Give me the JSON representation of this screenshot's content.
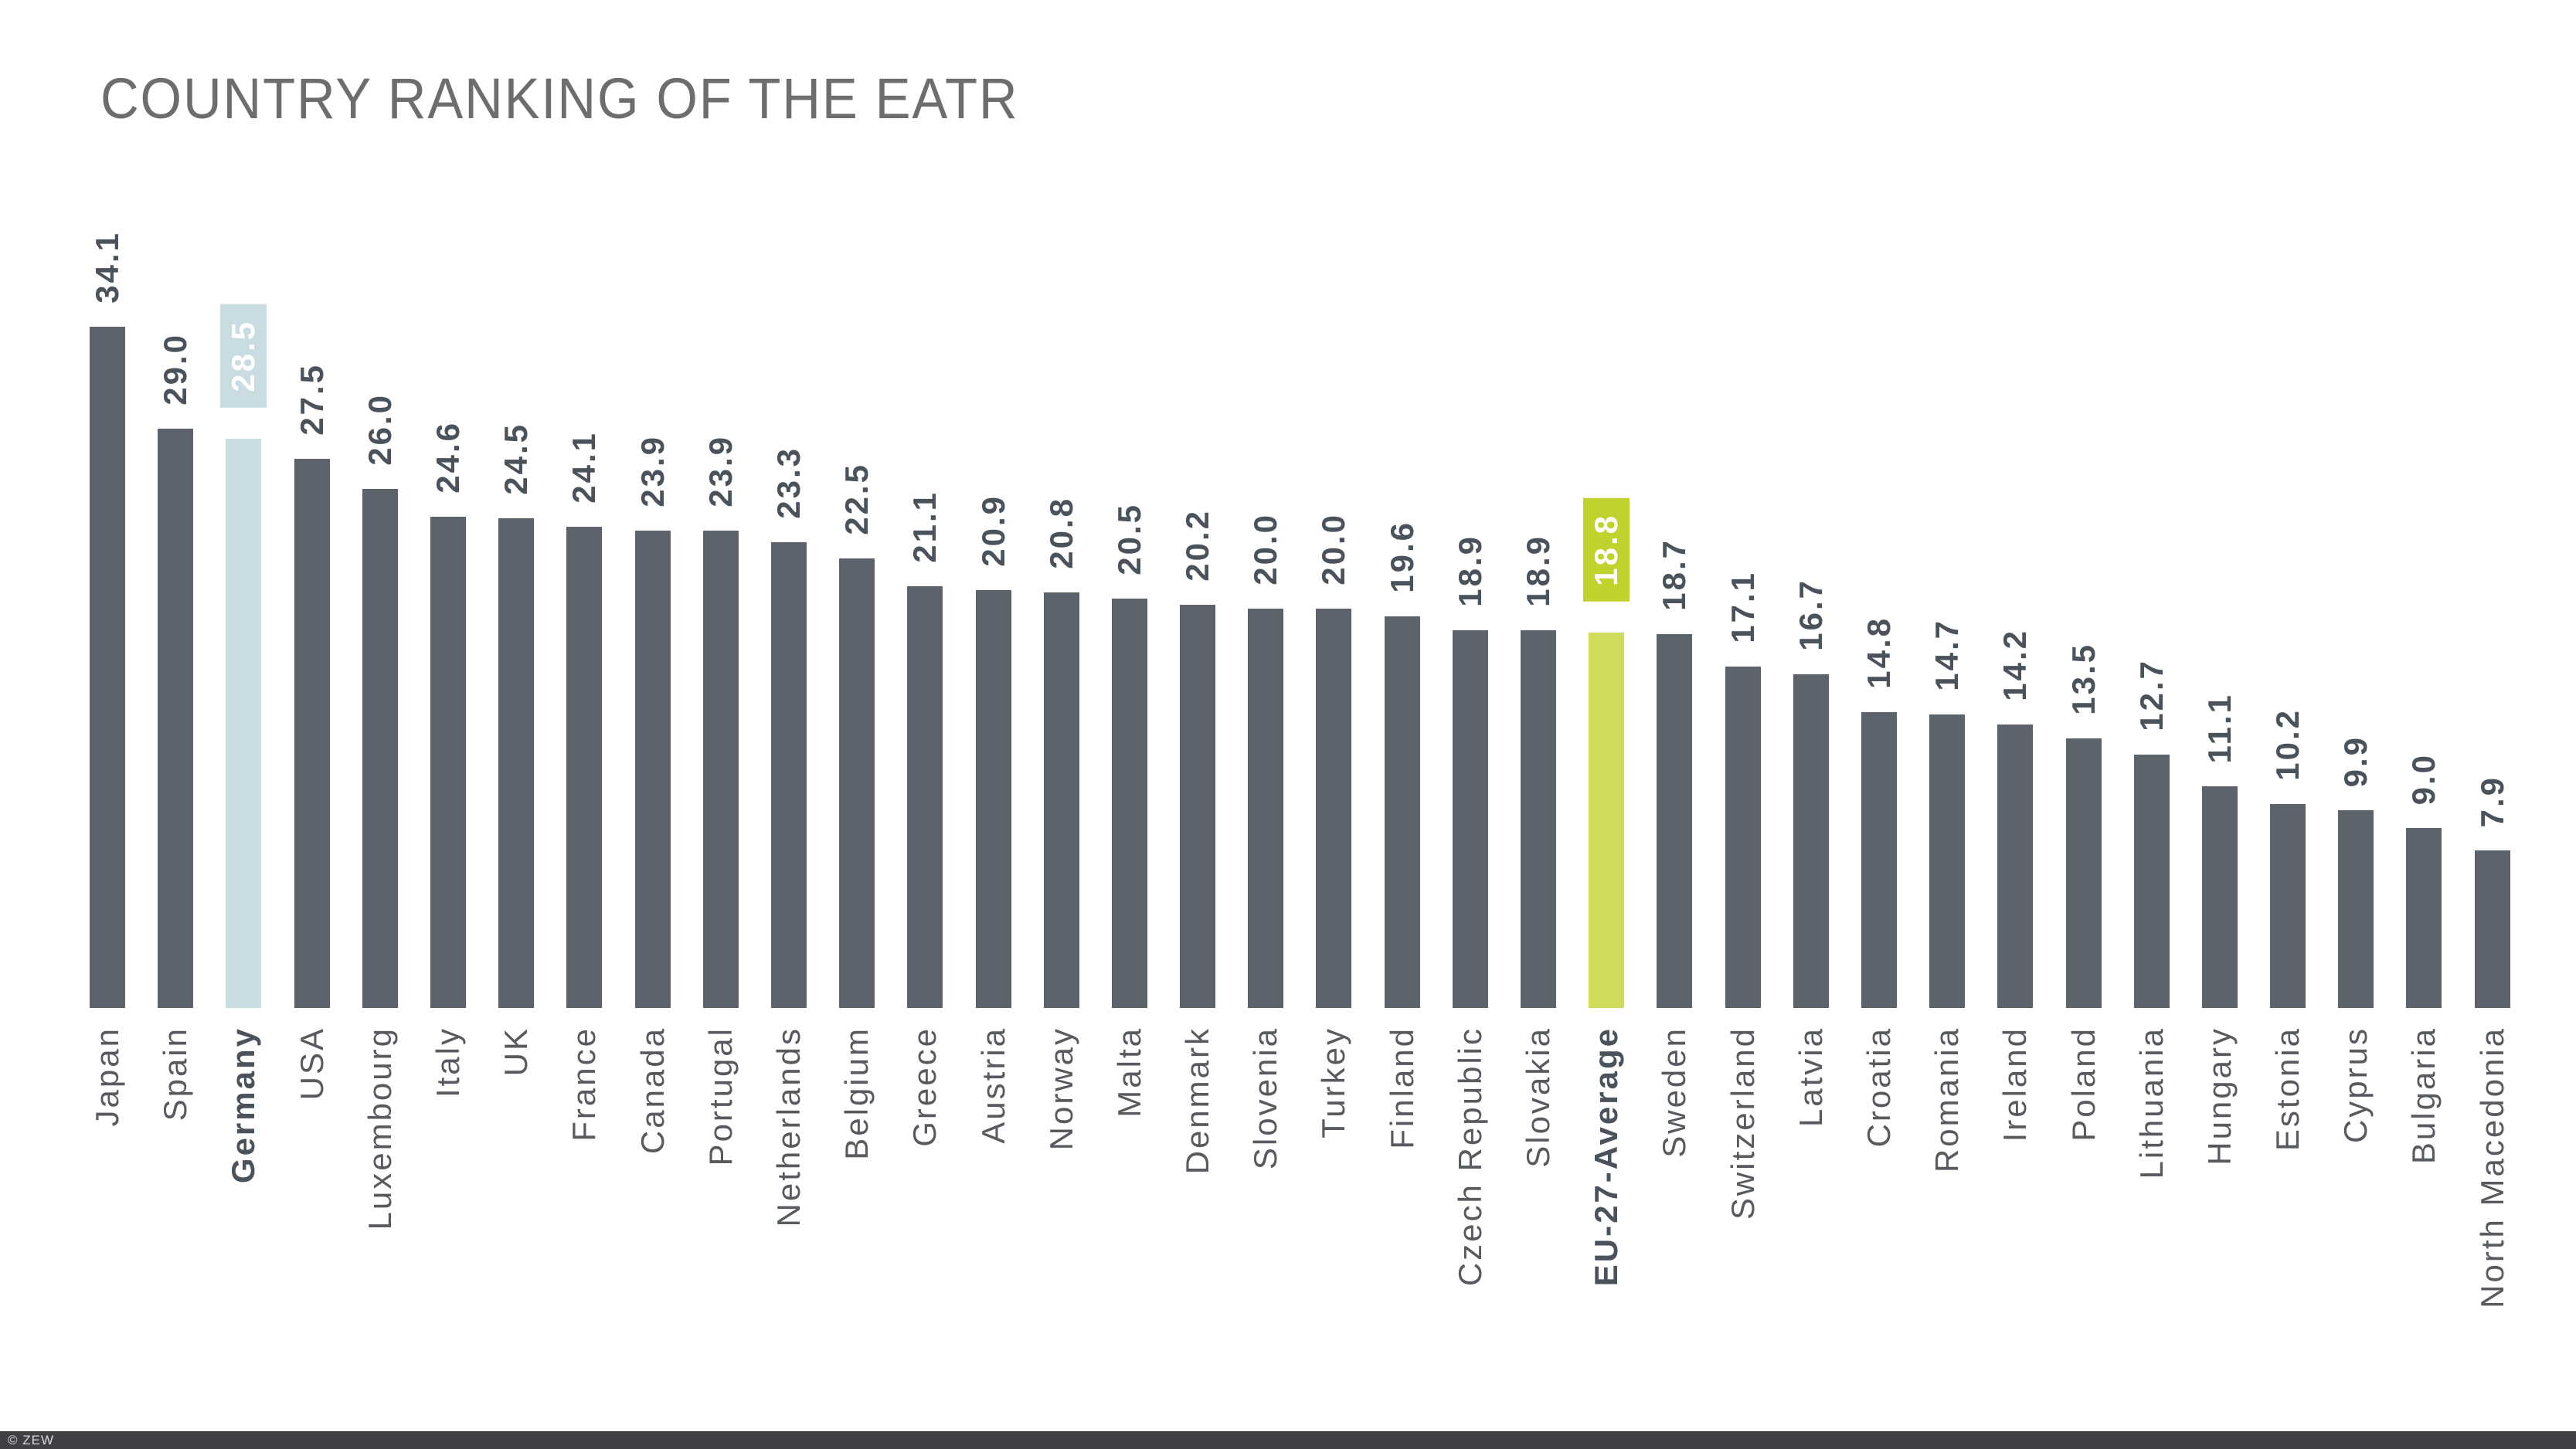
{
  "title": "COUNTRY RANKING OF THE EATR",
  "footer": {
    "credit": "© ZEW"
  },
  "colors": {
    "bar": "#5d636c",
    "germany_bar": "#c8dce1",
    "eu_bar": "#cedb5b",
    "eu_box": "#c0d22d",
    "value_text": "#4a525c",
    "label_text": "#575a5f",
    "title_text": "#6d6d6d",
    "footer_bg": "#3e4043",
    "footer_text": "#d9d9d9"
  },
  "chart_data": {
    "type": "bar",
    "title": "COUNTRY RANKING OF THE EATR",
    "orientation": "vertical",
    "axes": "none",
    "grid": false,
    "legend": false,
    "value_labels": "above each bar, rotated 90 degrees",
    "category_labels": "below each bar, rotated 90 degrees",
    "ylim": [
      0,
      34.1
    ],
    "highlights": {
      "Germany": "light-blue bar with value in light-blue box, bold category label",
      "EU-27-Average": "yellow-green bar with value in green box, bold category label"
    },
    "categories": [
      "Japan",
      "Spain",
      "Germany",
      "USA",
      "Luxembourg",
      "Italy",
      "UK",
      "France",
      "Canada",
      "Portugal",
      "Netherlands",
      "Belgium",
      "Greece",
      "Austria",
      "Norway",
      "Malta",
      "Denmark",
      "Slovenia",
      "Turkey",
      "Finland",
      "Czech Republic",
      "Slovakia",
      "EU-27-Average",
      "Sweden",
      "Switzerland",
      "Latvia",
      "Croatia",
      "Romania",
      "Ireland",
      "Poland",
      "Lithuania",
      "Hungary",
      "Estonia",
      "Cyprus",
      "Bulgaria",
      "North Macedonia"
    ],
    "values": [
      34.1,
      29.0,
      28.5,
      27.5,
      26.0,
      24.6,
      24.5,
      24.1,
      23.9,
      23.9,
      23.3,
      22.5,
      21.1,
      20.9,
      20.8,
      20.5,
      20.2,
      20.0,
      20.0,
      19.6,
      18.9,
      18.9,
      18.8,
      18.7,
      17.1,
      16.7,
      14.8,
      14.7,
      14.2,
      13.5,
      12.7,
      11.1,
      10.2,
      9.9,
      9.0,
      7.9
    ],
    "bars": [
      {
        "label": "Japan",
        "value": 34.1,
        "display": "34.1",
        "highlight": null
      },
      {
        "label": "Spain",
        "value": 29.0,
        "display": "29.0",
        "highlight": null
      },
      {
        "label": "Germany",
        "value": 28.5,
        "display": "28.5",
        "highlight": "germany"
      },
      {
        "label": "USA",
        "value": 27.5,
        "display": "27.5",
        "highlight": null
      },
      {
        "label": "Luxembourg",
        "value": 26.0,
        "display": "26.0",
        "highlight": null
      },
      {
        "label": "Italy",
        "value": 24.6,
        "display": "24.6",
        "highlight": null
      },
      {
        "label": "UK",
        "value": 24.5,
        "display": "24.5",
        "highlight": null
      },
      {
        "label": "France",
        "value": 24.1,
        "display": "24.1",
        "highlight": null
      },
      {
        "label": "Canada",
        "value": 23.9,
        "display": "23.9",
        "highlight": null
      },
      {
        "label": "Portugal",
        "value": 23.9,
        "display": "23.9",
        "highlight": null
      },
      {
        "label": "Netherlands",
        "value": 23.3,
        "display": "23.3",
        "highlight": null
      },
      {
        "label": "Belgium",
        "value": 22.5,
        "display": "22.5",
        "highlight": null
      },
      {
        "label": "Greece",
        "value": 21.1,
        "display": "21.1",
        "highlight": null
      },
      {
        "label": "Austria",
        "value": 20.9,
        "display": "20.9",
        "highlight": null
      },
      {
        "label": "Norway",
        "value": 20.8,
        "display": "20.8",
        "highlight": null
      },
      {
        "label": "Malta",
        "value": 20.5,
        "display": "20.5",
        "highlight": null
      },
      {
        "label": "Denmark",
        "value": 20.2,
        "display": "20.2",
        "highlight": null
      },
      {
        "label": "Slovenia",
        "value": 20.0,
        "display": "20.0",
        "highlight": null
      },
      {
        "label": "Turkey",
        "value": 20.0,
        "display": "20.0",
        "highlight": null
      },
      {
        "label": "Finland",
        "value": 19.6,
        "display": "19.6",
        "highlight": null
      },
      {
        "label": "Czech Republic",
        "value": 18.9,
        "display": "18.9",
        "highlight": null
      },
      {
        "label": "Slovakia",
        "value": 18.9,
        "display": "18.9",
        "highlight": null
      },
      {
        "label": "EU-27-Average",
        "value": 18.8,
        "display": "18.8",
        "highlight": "eu"
      },
      {
        "label": "Sweden",
        "value": 18.7,
        "display": "18.7",
        "highlight": null
      },
      {
        "label": "Switzerland",
        "value": 17.1,
        "display": "17.1",
        "highlight": null
      },
      {
        "label": "Latvia",
        "value": 16.7,
        "display": "16.7",
        "highlight": null
      },
      {
        "label": "Croatia",
        "value": 14.8,
        "display": "14.8",
        "highlight": null
      },
      {
        "label": "Romania",
        "value": 14.7,
        "display": "14.7",
        "highlight": null
      },
      {
        "label": "Ireland",
        "value": 14.2,
        "display": "14.2",
        "highlight": null
      },
      {
        "label": "Poland",
        "value": 13.5,
        "display": "13.5",
        "highlight": null
      },
      {
        "label": "Lithuania",
        "value": 12.7,
        "display": "12.7",
        "highlight": null
      },
      {
        "label": "Hungary",
        "value": 11.1,
        "display": "11.1",
        "highlight": null
      },
      {
        "label": "Estonia",
        "value": 10.2,
        "display": "10.2",
        "highlight": null
      },
      {
        "label": "Cyprus",
        "value": 9.9,
        "display": "9.9",
        "highlight": null
      },
      {
        "label": "Bulgaria",
        "value": 9.0,
        "display": "9.0",
        "highlight": null
      },
      {
        "label": "North Macedonia",
        "value": 7.9,
        "display": "7.9",
        "highlight": null
      }
    ]
  }
}
